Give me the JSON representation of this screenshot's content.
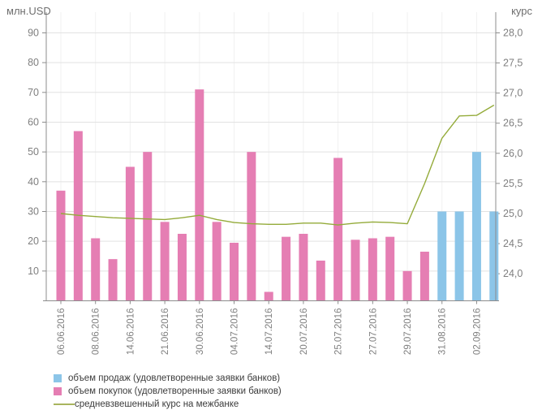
{
  "chart_data": {
    "type": "bar+line",
    "title": "",
    "left_axis": {
      "title": "млн.USD",
      "min": 0,
      "max": 97,
      "ticks": [
        90,
        80,
        70,
        60,
        50,
        40,
        30,
        20,
        10
      ],
      "grid": true
    },
    "right_axis": {
      "title": "курс",
      "min": 23.55,
      "max": 28.3,
      "ticks": [
        28.0,
        27.5,
        27.0,
        26.5,
        26.0,
        25.5,
        25.0,
        24.5,
        24.0
      ],
      "tick_labels": [
        "28,0",
        "27,5",
        "27,0",
        "26,5",
        "26,0",
        "25,5",
        "25,0",
        "24,5",
        "24,0"
      ]
    },
    "x_labels": [
      "06.06.2016",
      "",
      "08.06.2016",
      "",
      "14.06.2016",
      "",
      "21.06.2016",
      "",
      "30.06.2016",
      "",
      "04.07.2016",
      "",
      "14.07.2016",
      "",
      "20.07.2016",
      "",
      "25.07.2016",
      "",
      "27.07.2016",
      "",
      "29.07.2016",
      "",
      "31.08.2016",
      "",
      "02.09.2016",
      ""
    ],
    "series": [
      {
        "name": "объем продаж (удовлетворенные заявки банков)",
        "type": "bar",
        "axis": "left",
        "color": "#8cc5e8",
        "values": [
          null,
          null,
          null,
          null,
          null,
          null,
          null,
          null,
          null,
          null,
          null,
          null,
          null,
          null,
          null,
          null,
          null,
          null,
          null,
          null,
          null,
          null,
          30,
          30,
          50,
          30
        ]
      },
      {
        "name": "объем покупок (удовлетворенные заявки банков)",
        "type": "bar",
        "axis": "left",
        "color": "#e57eb3",
        "values": [
          37,
          57,
          21,
          14,
          45,
          50,
          26.5,
          22.5,
          71,
          26.5,
          19.5,
          50,
          3,
          21.5,
          22.5,
          13.5,
          48,
          20.5,
          21,
          21.5,
          10,
          16.5,
          null,
          null,
          null,
          null
        ]
      },
      {
        "name": "средневзвешенный курс на межбанке",
        "type": "line",
        "axis": "right",
        "color": "#94ab3a",
        "values": [
          25.0,
          24.97,
          24.95,
          24.93,
          24.92,
          24.91,
          24.9,
          24.93,
          24.97,
          24.9,
          24.85,
          24.83,
          24.82,
          24.82,
          24.84,
          24.84,
          24.81,
          24.84,
          24.86,
          24.85,
          24.83,
          25.5,
          26.25,
          26.62,
          26.63,
          26.8
        ]
      }
    ],
    "legend_position": "bottom-left",
    "colors": {
      "grid_line": "#e2e2e2",
      "vertical_grid_line": "#f1f1f1",
      "axis_line": "#8c8c8c",
      "tick_text": "#7f7f7f"
    }
  },
  "legend": {
    "items": [
      {
        "swatch": "square",
        "color": "#8cc5e8",
        "label": "объем продаж (удовлетворенные заявки банков)"
      },
      {
        "swatch": "square",
        "color": "#e57eb3",
        "label": "объем покупок (удовлетворенные заявки банков)"
      },
      {
        "swatch": "line",
        "color": "#a9b55e",
        "label": "средневзвешенный курс на межбанке"
      }
    ]
  },
  "header": {
    "left_axis_title": "млн.USD",
    "right_axis_title": "курс"
  }
}
